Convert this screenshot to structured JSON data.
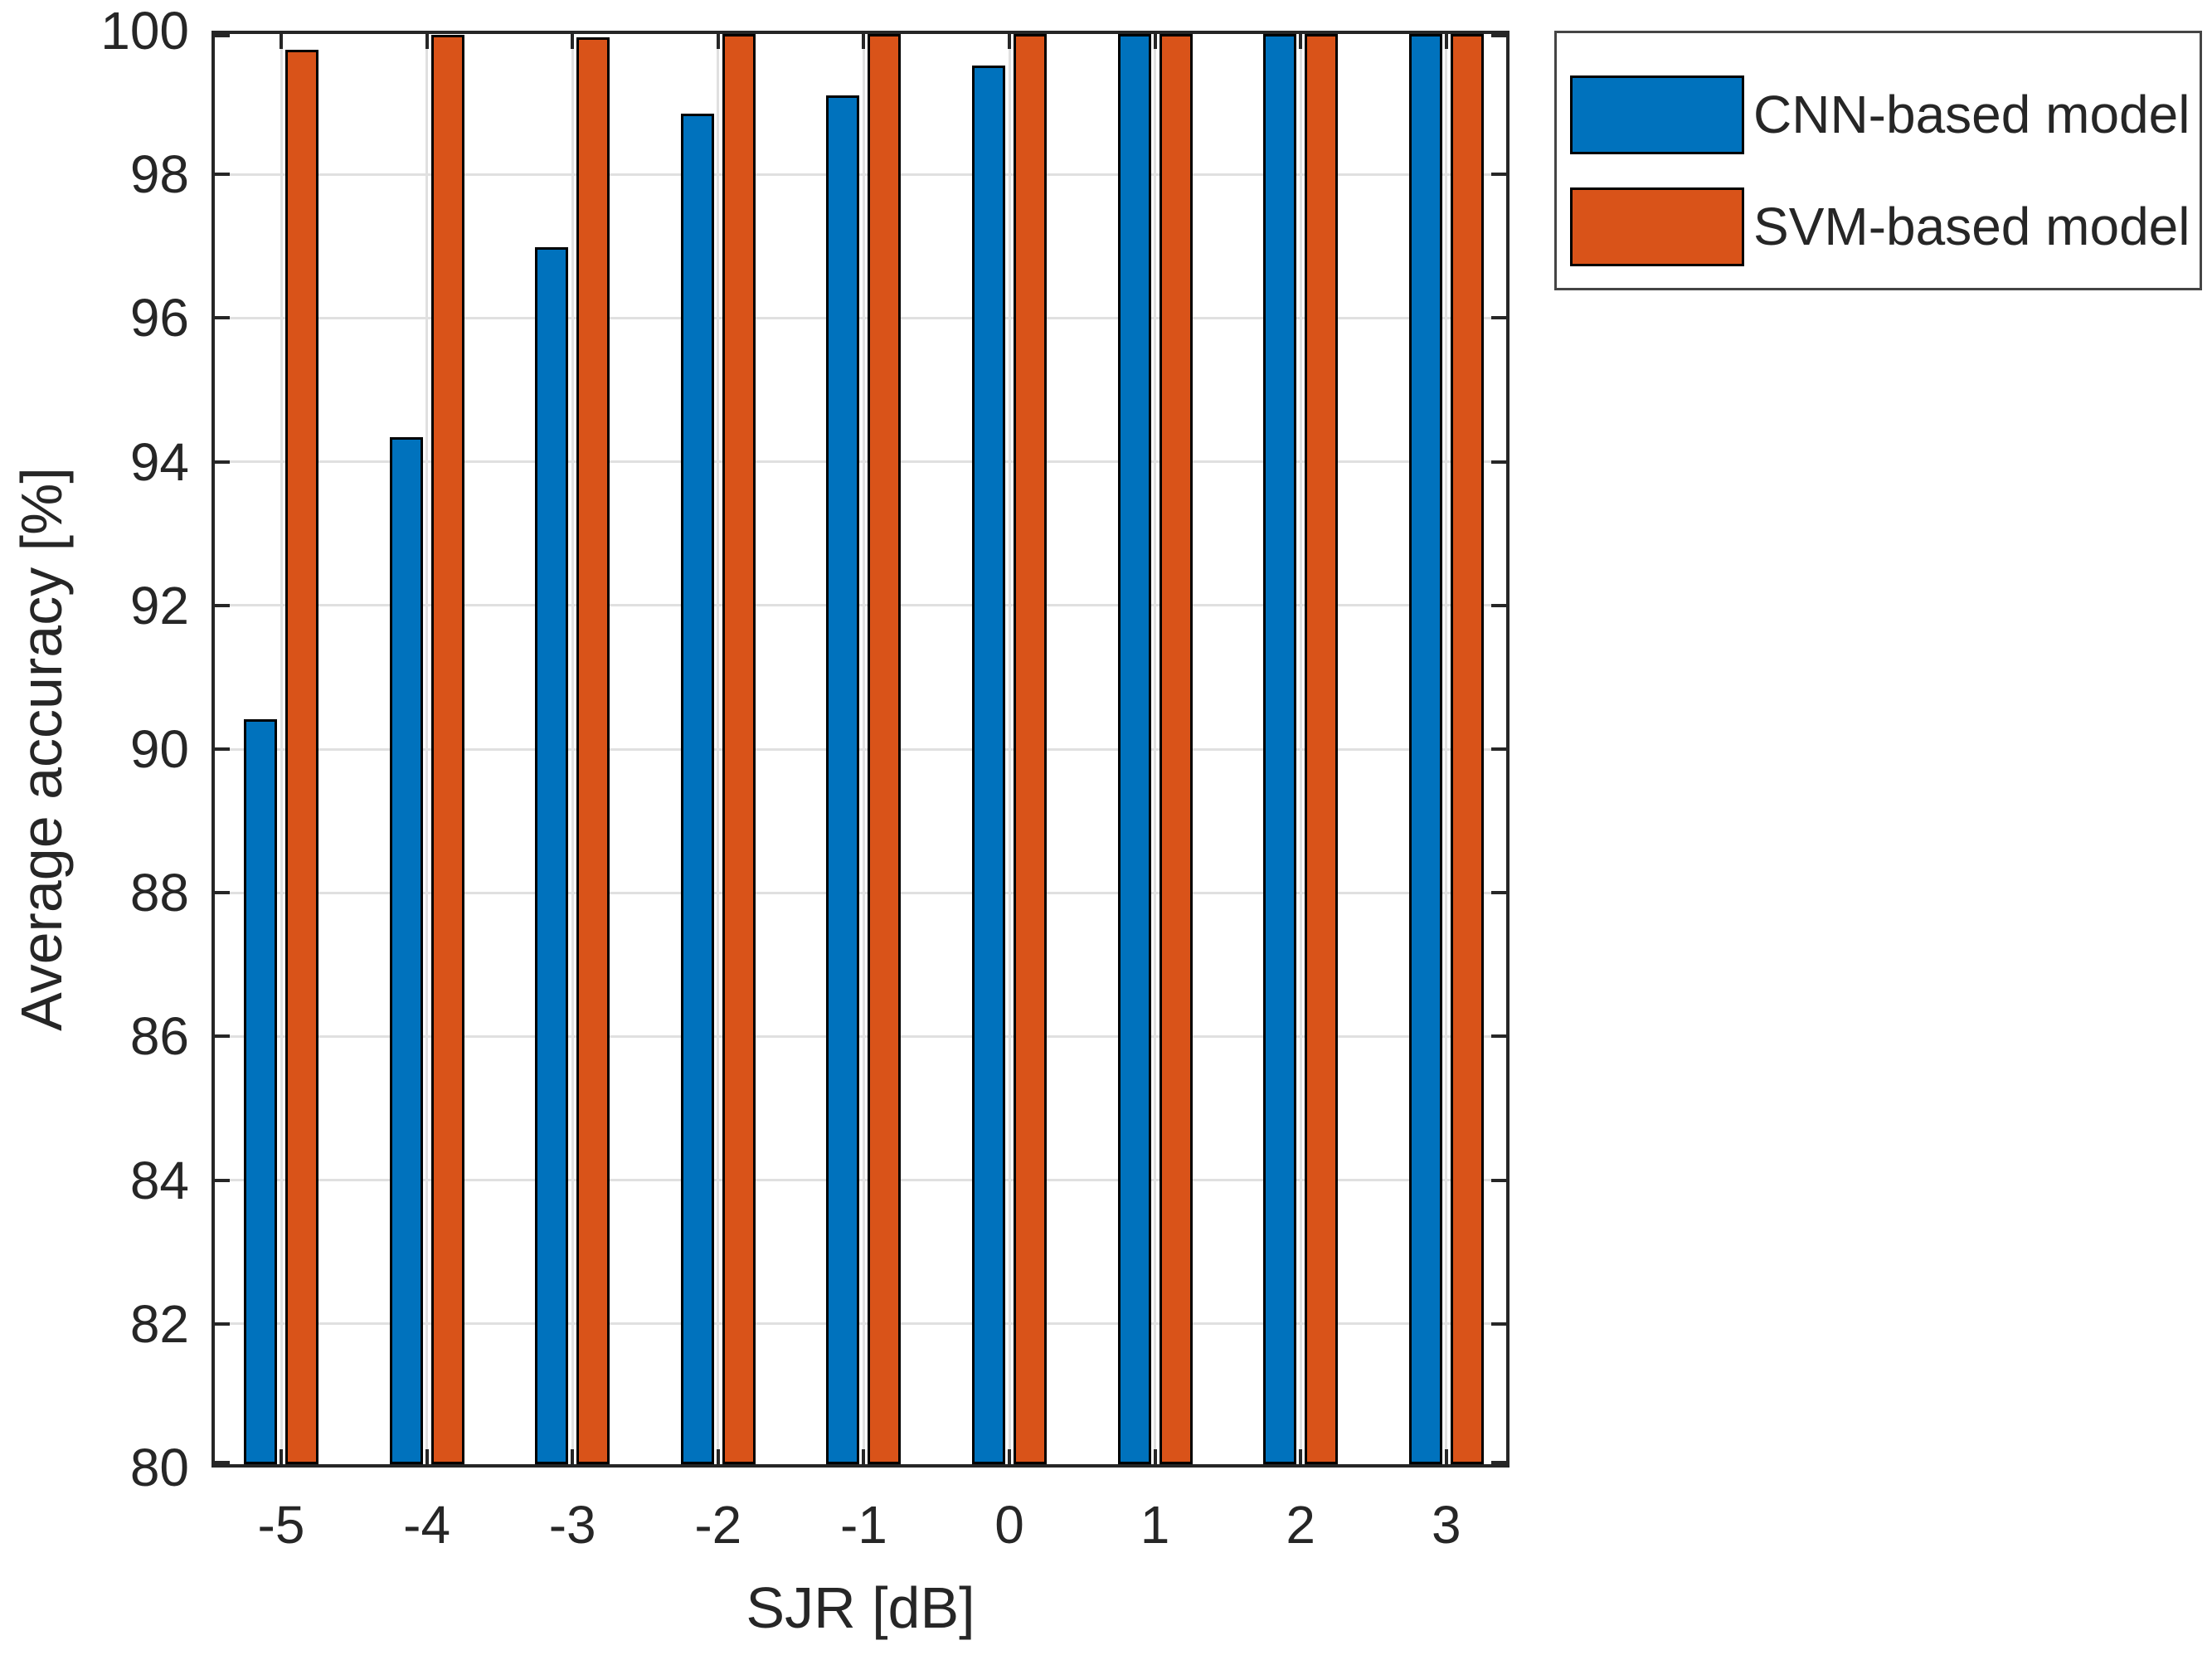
{
  "chart_data": {
    "type": "bar",
    "title": "",
    "xlabel": "SJR [dB]",
    "ylabel": "Average accuracy [%]",
    "categories": [
      "-5",
      "-4",
      "-3",
      "-2",
      "-1",
      "0",
      "1",
      "2",
      "3"
    ],
    "series": [
      {
        "name": "CNN-based model",
        "color": "#0072BD",
        "values": [
          90.4,
          94.33,
          96.97,
          98.83,
          99.08,
          99.5,
          100,
          100,
          100
        ]
      },
      {
        "name": "SVM-based model",
        "color": "#D95319",
        "values": [
          99.72,
          99.93,
          99.89,
          99.96,
          99.96,
          99.98,
          100,
          100,
          100
        ]
      }
    ],
    "ylim": [
      80,
      100
    ],
    "yticks": [
      "80",
      "82",
      "84",
      "86",
      "88",
      "90",
      "92",
      "94",
      "96",
      "98",
      "100"
    ],
    "grid": "on",
    "legend_position": "outside-top-right"
  },
  "colors": {
    "axis": "#262626",
    "grid": "#e0e0e0",
    "bar_edge": "#000000",
    "text": "#262626",
    "legend_border": "#454545",
    "background": "#ffffff"
  }
}
